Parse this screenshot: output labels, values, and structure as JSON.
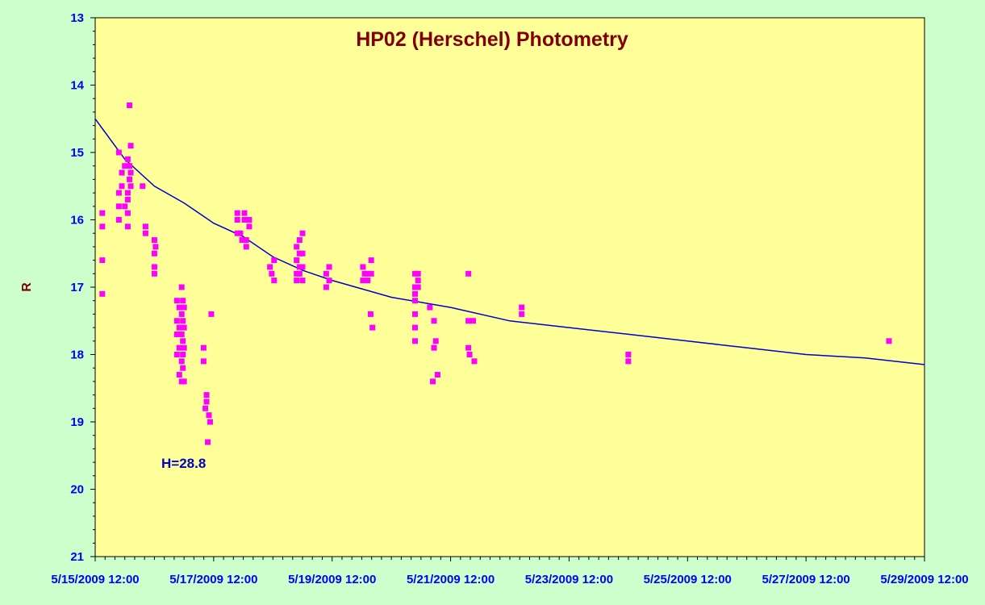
{
  "chart_data": {
    "type": "scatter",
    "title": "HP02 (Herschel) Photometry",
    "ylabel": "R",
    "xlabel": "",
    "annotation": "H=28.8",
    "y_axis": {
      "range": [
        13,
        21
      ],
      "inverted": true,
      "major_ticks": [
        13,
        14,
        15,
        16,
        17,
        18,
        19,
        20,
        21
      ],
      "minor_step": 0.2
    },
    "x_axis": {
      "range": [
        "5/15/2009 12:00",
        "5/29/2009 12:00"
      ],
      "tick_labels": [
        "5/15/2009 12:00",
        "5/17/2009 12:00",
        "5/19/2009 12:00",
        "5/21/2009 12:00",
        "5/23/2009 12:00",
        "5/25/2009 12:00",
        "5/27/2009 12:00",
        "5/29/2009 12:00"
      ],
      "minor_step_hours": 4
    },
    "grid": false,
    "colors": {
      "plot_background": "#ffff99",
      "page_background": "#ccffcc",
      "points": "#ff00ff",
      "fit_line": "#0000cc",
      "title": "#800000",
      "ticks": "#0000ff"
    },
    "series": [
      {
        "kind": "points",
        "marker": "square",
        "x_unit": "days after 5/15/2009 12:00",
        "points": [
          [
            0.12,
            15.9
          ],
          [
            0.12,
            16.1
          ],
          [
            0.12,
            16.6
          ],
          [
            0.12,
            17.1
          ],
          [
            0.4,
            15.0
          ],
          [
            0.4,
            15.6
          ],
          [
            0.4,
            15.8
          ],
          [
            0.4,
            16.0
          ],
          [
            0.45,
            15.3
          ],
          [
            0.45,
            15.5
          ],
          [
            0.5,
            15.2
          ],
          [
            0.5,
            15.8
          ],
          [
            0.55,
            15.1
          ],
          [
            0.55,
            15.6
          ],
          [
            0.55,
            15.7
          ],
          [
            0.55,
            15.9
          ],
          [
            0.55,
            16.1
          ],
          [
            0.58,
            14.3
          ],
          [
            0.58,
            15.2
          ],
          [
            0.58,
            15.4
          ],
          [
            0.6,
            14.9
          ],
          [
            0.6,
            15.3
          ],
          [
            0.6,
            15.5
          ],
          [
            0.8,
            15.5
          ],
          [
            0.85,
            16.1
          ],
          [
            0.85,
            16.2
          ],
          [
            1.0,
            16.3
          ],
          [
            1.0,
            16.5
          ],
          [
            1.0,
            16.7
          ],
          [
            1.0,
            16.8
          ],
          [
            1.02,
            16.4
          ],
          [
            1.38,
            17.2
          ],
          [
            1.38,
            17.5
          ],
          [
            1.38,
            17.7
          ],
          [
            1.38,
            18.0
          ],
          [
            1.42,
            17.3
          ],
          [
            1.42,
            17.6
          ],
          [
            1.42,
            17.9
          ],
          [
            1.42,
            18.3
          ],
          [
            1.46,
            17.0
          ],
          [
            1.46,
            17.4
          ],
          [
            1.46,
            17.7
          ],
          [
            1.46,
            18.1
          ],
          [
            1.46,
            18.4
          ],
          [
            1.48,
            17.2
          ],
          [
            1.48,
            17.5
          ],
          [
            1.48,
            17.8
          ],
          [
            1.48,
            18.0
          ],
          [
            1.48,
            18.2
          ],
          [
            1.5,
            17.3
          ],
          [
            1.5,
            17.6
          ],
          [
            1.5,
            17.9
          ],
          [
            1.5,
            18.4
          ],
          [
            1.83,
            17.9
          ],
          [
            1.83,
            18.1
          ],
          [
            1.86,
            18.8
          ],
          [
            1.88,
            18.6
          ],
          [
            1.88,
            18.7
          ],
          [
            1.9,
            19.3
          ],
          [
            1.92,
            18.9
          ],
          [
            1.94,
            19.0
          ],
          [
            1.96,
            17.4
          ],
          [
            2.4,
            15.9
          ],
          [
            2.4,
            16.0
          ],
          [
            2.4,
            16.2
          ],
          [
            2.45,
            16.2
          ],
          [
            2.48,
            16.3
          ],
          [
            2.52,
            15.9
          ],
          [
            2.52,
            16.0
          ],
          [
            2.55,
            16.3
          ],
          [
            2.55,
            16.4
          ],
          [
            2.6,
            16.0
          ],
          [
            2.6,
            16.1
          ],
          [
            2.95,
            16.7
          ],
          [
            2.98,
            16.8
          ],
          [
            3.02,
            16.6
          ],
          [
            3.02,
            16.9
          ],
          [
            3.4,
            16.4
          ],
          [
            3.4,
            16.6
          ],
          [
            3.4,
            16.8
          ],
          [
            3.4,
            16.9
          ],
          [
            3.45,
            16.3
          ],
          [
            3.45,
            16.5
          ],
          [
            3.45,
            16.7
          ],
          [
            3.45,
            16.8
          ],
          [
            3.5,
            16.2
          ],
          [
            3.5,
            16.5
          ],
          [
            3.5,
            16.7
          ],
          [
            3.5,
            16.9
          ],
          [
            3.9,
            16.8
          ],
          [
            3.9,
            17.0
          ],
          [
            3.95,
            16.7
          ],
          [
            3.95,
            16.9
          ],
          [
            4.52,
            16.7
          ],
          [
            4.52,
            16.9
          ],
          [
            4.55,
            16.8
          ],
          [
            4.6,
            16.8
          ],
          [
            4.6,
            16.9
          ],
          [
            4.65,
            17.4
          ],
          [
            4.66,
            16.6
          ],
          [
            4.66,
            16.8
          ],
          [
            4.68,
            17.6
          ],
          [
            5.4,
            16.8
          ],
          [
            5.4,
            17.0
          ],
          [
            5.4,
            17.1
          ],
          [
            5.4,
            17.2
          ],
          [
            5.4,
            17.4
          ],
          [
            5.4,
            17.6
          ],
          [
            5.4,
            17.8
          ],
          [
            5.45,
            16.8
          ],
          [
            5.45,
            17.0
          ],
          [
            5.45,
            16.9
          ],
          [
            5.65,
            17.3
          ],
          [
            5.7,
            18.4
          ],
          [
            5.72,
            17.9
          ],
          [
            5.72,
            17.5
          ],
          [
            5.75,
            17.8
          ],
          [
            5.78,
            18.3
          ],
          [
            6.3,
            16.8
          ],
          [
            6.3,
            17.5
          ],
          [
            6.3,
            17.9
          ],
          [
            6.32,
            18.0
          ],
          [
            6.38,
            17.5
          ],
          [
            6.4,
            18.1
          ],
          [
            7.2,
            17.3
          ],
          [
            7.2,
            17.4
          ],
          [
            9.0,
            18.0
          ],
          [
            9.0,
            18.1
          ],
          [
            13.4,
            17.8
          ]
        ]
      },
      {
        "kind": "fit_curve",
        "label": "H=28.8",
        "curve": [
          [
            0,
            14.5
          ],
          [
            0.5,
            15.1
          ],
          [
            1,
            15.5
          ],
          [
            1.5,
            15.75
          ],
          [
            2,
            16.05
          ],
          [
            2.5,
            16.25
          ],
          [
            3,
            16.55
          ],
          [
            3.5,
            16.75
          ],
          [
            4,
            16.9
          ],
          [
            5,
            17.15
          ],
          [
            6,
            17.3
          ],
          [
            7,
            17.5
          ],
          [
            8,
            17.6
          ],
          [
            9,
            17.7
          ],
          [
            10,
            17.8
          ],
          [
            11,
            17.9
          ],
          [
            12,
            18.0
          ],
          [
            13,
            18.05
          ],
          [
            14,
            18.15
          ]
        ]
      }
    ]
  }
}
